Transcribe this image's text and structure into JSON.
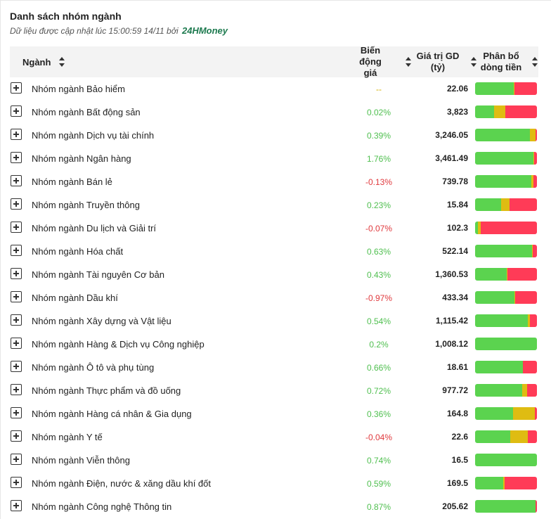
{
  "header": {
    "title": "Danh sách nhóm ngành",
    "subtitle_prefix": "Dữ liệu được cập nhật lúc 15:00:59 14/11 bởi",
    "brand": "24HMoney"
  },
  "columns": {
    "name": "Ngành",
    "change_line1": "Biến động",
    "change_line2": "giá",
    "value_line1": "Giá trị GD",
    "value_line2": "(tỷ)",
    "flow_line1": "Phân bổ",
    "flow_line2": "dòng tiền"
  },
  "colors": {
    "up": "#5bd34f",
    "flat": "#dfbc12",
    "down": "#ff3b57",
    "brand": "#1d7a4f"
  },
  "rows": [
    {
      "name": "Nhóm ngành Bảo hiểm",
      "change": "--",
      "trend": "flat",
      "value": "22.06",
      "flow": {
        "up": 0.62,
        "flat": 0.02,
        "down": 0.36
      }
    },
    {
      "name": "Nhóm ngành Bất động sản",
      "change": "0.02%",
      "trend": "pos",
      "value": "3,823",
      "flow": {
        "up": 0.31,
        "flat": 0.18,
        "down": 0.51
      }
    },
    {
      "name": "Nhóm ngành Dịch vụ tài chính",
      "change": "0.39%",
      "trend": "pos",
      "value": "3,246.05",
      "flow": {
        "up": 0.89,
        "flat": 0.09,
        "down": 0.02
      }
    },
    {
      "name": "Nhóm ngành Ngân hàng",
      "change": "1.76%",
      "trend": "pos",
      "value": "3,461.49",
      "flow": {
        "up": 0.94,
        "flat": 0.01,
        "down": 0.05
      }
    },
    {
      "name": "Nhóm ngành Bán lẻ",
      "change": "-0.13%",
      "trend": "neg",
      "value": "739.78",
      "flow": {
        "up": 0.91,
        "flat": 0.03,
        "down": 0.06
      }
    },
    {
      "name": "Nhóm ngành Truyền thông",
      "change": "0.23%",
      "trend": "pos",
      "value": "15.84",
      "flow": {
        "up": 0.42,
        "flat": 0.14,
        "down": 0.44
      }
    },
    {
      "name": "Nhóm ngành Du lịch và Giải trí",
      "change": "-0.07%",
      "trend": "neg",
      "value": "102.3",
      "flow": {
        "up": 0.04,
        "flat": 0.05,
        "down": 0.91
      }
    },
    {
      "name": "Nhóm ngành Hóa chất",
      "change": "0.63%",
      "trend": "pos",
      "value": "522.14",
      "flow": {
        "up": 0.92,
        "flat": 0.01,
        "down": 0.07
      }
    },
    {
      "name": "Nhóm ngành Tài nguyên Cơ bản",
      "change": "0.43%",
      "trend": "pos",
      "value": "1,360.53",
      "flow": {
        "up": 0.51,
        "flat": 0.01,
        "down": 0.48
      }
    },
    {
      "name": "Nhóm ngành Dầu khí",
      "change": "-0.97%",
      "trend": "neg",
      "value": "433.34",
      "flow": {
        "up": 0.64,
        "flat": 0.01,
        "down": 0.35
      }
    },
    {
      "name": "Nhóm ngành Xây dựng và Vật liệu",
      "change": "0.54%",
      "trend": "pos",
      "value": "1,115.42",
      "flow": {
        "up": 0.85,
        "flat": 0.04,
        "down": 0.11
      }
    },
    {
      "name": "Nhóm ngành Hàng & Dịch vụ Công nghiệp",
      "change": "0.2%",
      "trend": "pos",
      "value": "1,008.12",
      "flow": {
        "up": 1.0,
        "flat": 0.0,
        "down": 0.0
      }
    },
    {
      "name": "Nhóm ngành Ô tô và phụ tùng",
      "change": "0.66%",
      "trend": "pos",
      "value": "18.61",
      "flow": {
        "up": 0.77,
        "flat": 0.0,
        "down": 0.23
      }
    },
    {
      "name": "Nhóm ngành Thực phẩm và đồ uống",
      "change": "0.72%",
      "trend": "pos",
      "value": "977.72",
      "flow": {
        "up": 0.76,
        "flat": 0.08,
        "down": 0.16
      }
    },
    {
      "name": "Nhóm ngành Hàng cá nhân & Gia dụng",
      "change": "0.36%",
      "trend": "pos",
      "value": "164.8",
      "flow": {
        "up": 0.61,
        "flat": 0.36,
        "down": 0.03
      }
    },
    {
      "name": "Nhóm ngành Y tế",
      "change": "-0.04%",
      "trend": "neg",
      "value": "22.6",
      "flow": {
        "up": 0.57,
        "flat": 0.28,
        "down": 0.15
      }
    },
    {
      "name": "Nhóm ngành Viễn thông",
      "change": "0.74%",
      "trend": "pos",
      "value": "16.5",
      "flow": {
        "up": 1.0,
        "flat": 0.0,
        "down": 0.0
      }
    },
    {
      "name": "Nhóm ngành Điện, nước & xăng dầu khí đốt",
      "change": "0.59%",
      "trend": "pos",
      "value": "169.5",
      "flow": {
        "up": 0.45,
        "flat": 0.03,
        "down": 0.52
      }
    },
    {
      "name": "Nhóm ngành Công nghệ Thông tin",
      "change": "0.87%",
      "trend": "pos",
      "value": "205.62",
      "flow": {
        "up": 0.98,
        "flat": 0.0,
        "down": 0.02
      }
    }
  ]
}
